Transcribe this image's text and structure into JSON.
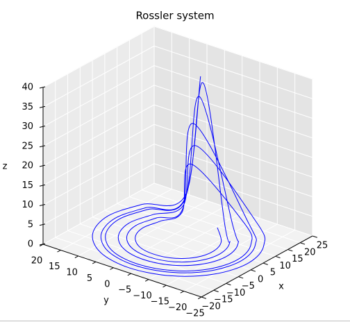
{
  "chart_data": {
    "type": "line3d",
    "title": "Rossler system",
    "xlabel": "x",
    "ylabel": "y",
    "zlabel": "z",
    "xlim": [
      -20,
      25
    ],
    "ylim": [
      -25,
      20
    ],
    "zlim": [
      0,
      40
    ],
    "xticks": [
      {
        "value": -20,
        "label": "−20"
      },
      {
        "value": -15,
        "label": "−15"
      },
      {
        "value": -10,
        "label": "−10"
      },
      {
        "value": -5,
        "label": "−5"
      },
      0,
      5,
      10,
      15,
      20,
      25
    ],
    "yticks": [
      {
        "value": -25,
        "label": "−25"
      },
      {
        "value": -20,
        "label": "−20"
      },
      {
        "value": -15,
        "label": "−15"
      },
      {
        "value": -10,
        "label": "−10"
      },
      {
        "value": -5,
        "label": "−5"
      },
      0,
      5,
      10,
      15,
      20
    ],
    "zticks": [
      0,
      5,
      10,
      15,
      20,
      25,
      30,
      35,
      40
    ],
    "grid": true,
    "color": "#0000ff",
    "x": [
      11,
      17.6,
      11,
      2,
      -7,
      -13.6,
      -16,
      -13.6,
      -7,
      2,
      11,
      17.6,
      8,
      12.4,
      8,
      2,
      -4,
      -8.4,
      -10,
      -8.4,
      -4,
      2,
      8,
      12.4,
      12,
      19.3,
      12,
      2,
      -8,
      -15.3,
      -18,
      -15.3,
      -8,
      2,
      12,
      19.3,
      9,
      14.1,
      9,
      2,
      -5,
      -10.1,
      -12,
      -10.1,
      -5,
      2,
      9,
      14.1,
      10.5,
      16.7,
      10.5,
      2,
      -6.5,
      -12.7,
      -15,
      -12.7,
      -6.5,
      2,
      10.5,
      16.7,
      7,
      10.7,
      7,
      2,
      -3,
      -6.7,
      -8,
      -6.7,
      -3,
      2,
      7,
      10.7
    ],
    "y": [
      -3,
      6,
      12.6,
      15,
      12.6,
      6,
      -3,
      -12,
      -18.6,
      -21,
      -18.6,
      -12,
      -3,
      3,
      7.4,
      9,
      7.4,
      3,
      -3,
      -9,
      -13.4,
      -15,
      -13.4,
      -9,
      -3,
      7,
      14.3,
      17,
      14.3,
      7,
      -3,
      -13,
      -20.3,
      -23,
      -20.3,
      -13,
      -3,
      4,
      9.1,
      11,
      9.1,
      4,
      -3,
      -10,
      -15.1,
      -17,
      -15.1,
      -10,
      -3,
      5.5,
      11.7,
      14,
      11.7,
      5.5,
      -3,
      -11.5,
      -17.7,
      -20,
      -17.7,
      -11.5,
      -3,
      2,
      5.7,
      7,
      5.7,
      2,
      -3,
      -8,
      -11.7,
      -13,
      -11.7,
      -8
    ],
    "z": [
      39,
      3,
      0.8,
      0.5,
      0.3,
      0.2,
      0.2,
      0.2,
      0.3,
      0.5,
      0.8,
      2,
      28,
      3,
      0.8,
      0.5,
      0.3,
      0.2,
      0.2,
      0.2,
      0.3,
      0.5,
      0.8,
      2,
      37,
      3,
      0.8,
      0.5,
      0.3,
      0.2,
      0.2,
      0.2,
      0.3,
      0.5,
      0.8,
      2,
      22,
      3,
      0.8,
      0.5,
      0.3,
      0.2,
      0.2,
      0.2,
      0.3,
      0.5,
      0.8,
      2,
      34,
      3,
      0.8,
      0.5,
      0.3,
      0.2,
      0.2,
      0.2,
      0.3,
      0.5,
      0.8,
      2,
      18,
      3,
      0.8,
      0.5,
      0.3,
      0.2,
      0.2,
      0.2,
      0.3,
      0.5,
      0.8,
      2
    ]
  }
}
